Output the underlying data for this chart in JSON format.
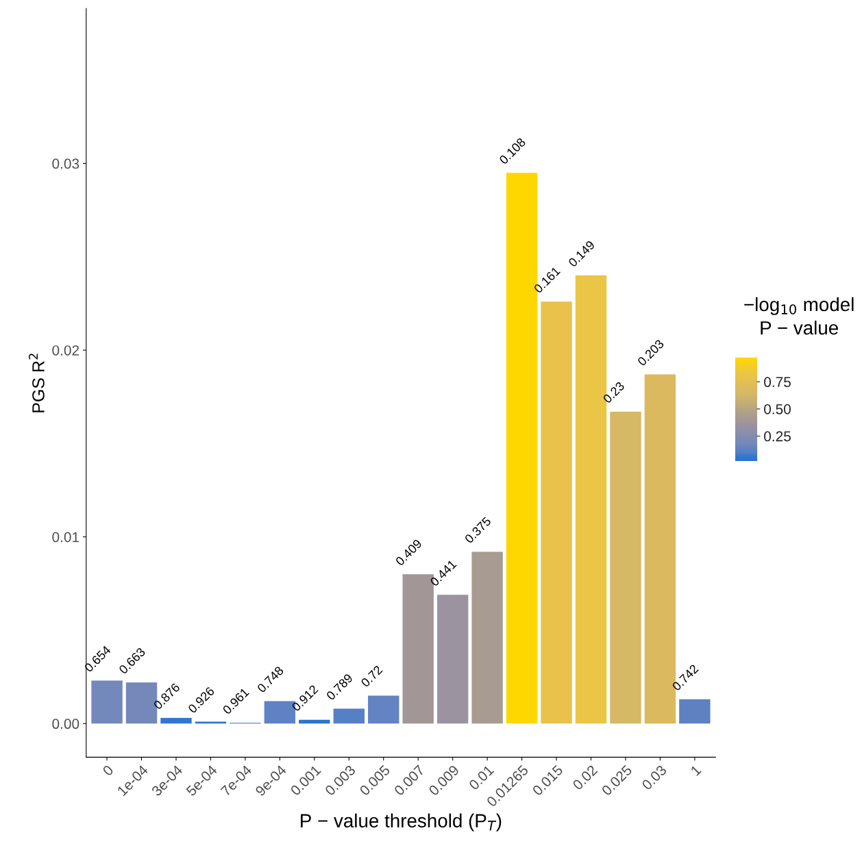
{
  "chart_data": {
    "type": "bar",
    "xlabel": "P − value threshold (P$_{T}$)",
    "ylabel": "PGS R$^{2}$",
    "clabel": "−log$_{10}$ model\nP − value",
    "categories": [
      "0",
      "1e-04",
      "3e-04",
      "5e-04",
      "7e-04",
      "9e-04",
      "0.001",
      "0.003",
      "0.005",
      "0.007",
      "0.009",
      "0.01",
      "0.01265",
      "0.015",
      "0.02",
      "0.025",
      "0.03",
      "1"
    ],
    "values": [
      0.0023,
      0.0022,
      0.0003,
      0.0001,
      4e-05,
      0.0012,
      0.0002,
      0.0008,
      0.0015,
      0.008,
      0.0069,
      0.0092,
      0.0295,
      0.0226,
      0.024,
      0.0167,
      0.0187,
      0.0013
    ],
    "annotations": [
      {
        "text": "0.654",
        "x": "0",
        "y": 0.0023
      },
      {
        "text": "0.663",
        "x": "1e-04",
        "y": 0.0022
      },
      {
        "text": "0.876",
        "x": "3e-04",
        "y": 0.0003
      },
      {
        "text": "0.926",
        "x": "5e-04",
        "y": 0.0001
      },
      {
        "text": "0.961",
        "x": "7e-04",
        "y": 4e-05
      },
      {
        "text": "0.748",
        "x": "9e-04",
        "y": 0.0012
      },
      {
        "text": "0.912",
        "x": "0.001",
        "y": 0.0002
      },
      {
        "text": "0.789",
        "x": "0.003",
        "y": 0.0008
      },
      {
        "text": "0.72",
        "x": "0.005",
        "y": 0.0015
      },
      {
        "text": "0.409",
        "x": "0.007",
        "y": 0.008
      },
      {
        "text": "0.441",
        "x": "0.009",
        "y": 0.0069
      },
      {
        "text": "0.375",
        "x": "0.01",
        "y": 0.0092
      },
      {
        "text": "0.108",
        "x": "0.01265",
        "y": 0.0295
      },
      {
        "text": "0.161",
        "x": "0.015",
        "y": 0.0226
      },
      {
        "text": "0.149",
        "x": "0.02",
        "y": 0.024
      },
      {
        "text": "0.23",
        "x": "0.025",
        "y": 0.0167
      },
      {
        "text": "0.203",
        "x": "0.03",
        "y": 0.0187
      },
      {
        "text": "0.742",
        "x": "1",
        "y": 0.0013
      }
    ],
    "cvalues": [
      0.18,
      0.18,
      0.06,
      0.03,
      0.02,
      0.13,
      0.04,
      0.1,
      0.14,
      0.39,
      0.36,
      0.43,
      0.97,
      0.79,
      0.83,
      0.64,
      0.69,
      0.13
    ],
    "colors": [
      "#7388bb",
      "#7488ba",
      "#3277cf",
      "#2a74d0",
      "#2673d1",
      "#5f82c4",
      "#2c75d0",
      "#5680c6",
      "#6383c2",
      "#a29796",
      "#9b94a0",
      "#a89b91",
      "#ffd700",
      "#e8c24a",
      "#ebc545",
      "#d6b865",
      "#dbb95f",
      "#5f81c2"
    ],
    "clim": [
      0.02,
      0.97
    ],
    "cticks": [
      0.25,
      {
        "value": 0.5,
        "label": "0.50"
      },
      0.75
    ],
    "ylim": [
      -0.0018,
      0.0383
    ],
    "yticks": [
      {
        "value": 0,
        "label": "0.00"
      },
      0.01,
      0.02,
      0.03
    ],
    "grid": false,
    "legend": false
  }
}
